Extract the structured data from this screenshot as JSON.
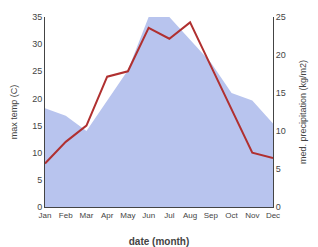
{
  "chart_data": {
    "type": "line",
    "categories": [
      "Jan",
      "Feb",
      "Mar",
      "Apr",
      "May",
      "Jun",
      "Jul",
      "Aug",
      "Sep",
      "Oct",
      "Nov",
      "Dec"
    ],
    "xlabel": "date (month)",
    "ylabel": "max temp (C)",
    "y2label": "med. precipitation (kg/m2)",
    "series": [
      {
        "type": "area",
        "axis": "y2",
        "color": "#b8c4ee",
        "values": [
          13,
          12,
          10,
          14,
          18,
          25,
          25,
          22,
          19,
          15,
          14,
          11
        ]
      },
      {
        "type": "line",
        "color": "#b03030",
        "values": [
          8,
          12,
          15,
          24,
          25,
          33,
          31,
          34,
          26,
          18,
          10,
          9
        ]
      }
    ],
    "ylim": [
      0,
      35
    ],
    "yticks": [
      0,
      5,
      10,
      15,
      20,
      25,
      30,
      35
    ],
    "y2lim": [
      0,
      25
    ],
    "y2ticks": [
      0,
      5,
      10,
      15,
      20,
      25
    ],
    "grid": false
  }
}
